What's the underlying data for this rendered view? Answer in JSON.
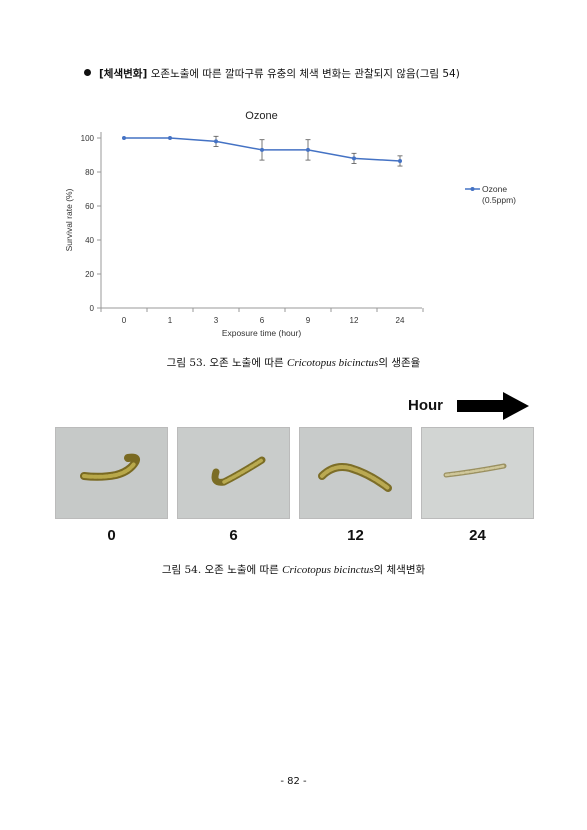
{
  "bullet": {
    "label": "[체색변화]",
    "text": "오존노출에 따른 깔따구류 유충의 체색 변화는 관찰되지 않음(그림 54)"
  },
  "chart_data": {
    "type": "line",
    "title": "Ozone",
    "xlabel": "Exposure time (hour)",
    "ylabel": "Survival rate (%)",
    "categories": [
      "0",
      "1",
      "3",
      "6",
      "9",
      "12",
      "24"
    ],
    "ylim": [
      0,
      100
    ],
    "yticks": [
      0,
      20,
      40,
      60,
      80,
      100
    ],
    "grid": false,
    "legend_position": "right",
    "series": [
      {
        "name": "Ozone (0.5ppm)",
        "legend_lines": [
          "Ozone",
          "(0.5ppm)"
        ],
        "values": [
          100,
          100,
          98,
          93,
          93,
          88,
          86.5
        ],
        "errors": [
          0,
          0,
          3,
          6,
          6,
          3,
          3
        ],
        "color": "#4472c4"
      }
    ]
  },
  "figure53": {
    "prefix": "그림 53. 오존 노출에 따른 ",
    "species": "Cricotopus bicinctus",
    "suffix": "의 생존율"
  },
  "figure54": {
    "hour_label": "Hour",
    "time_points": [
      "0",
      "6",
      "12",
      "24"
    ],
    "prefix": "그림 54. 오존 노출에 따른 ",
    "species": "Cricotopus bicinctus",
    "suffix": "의 체색변화"
  },
  "page_number": "- 82 -"
}
